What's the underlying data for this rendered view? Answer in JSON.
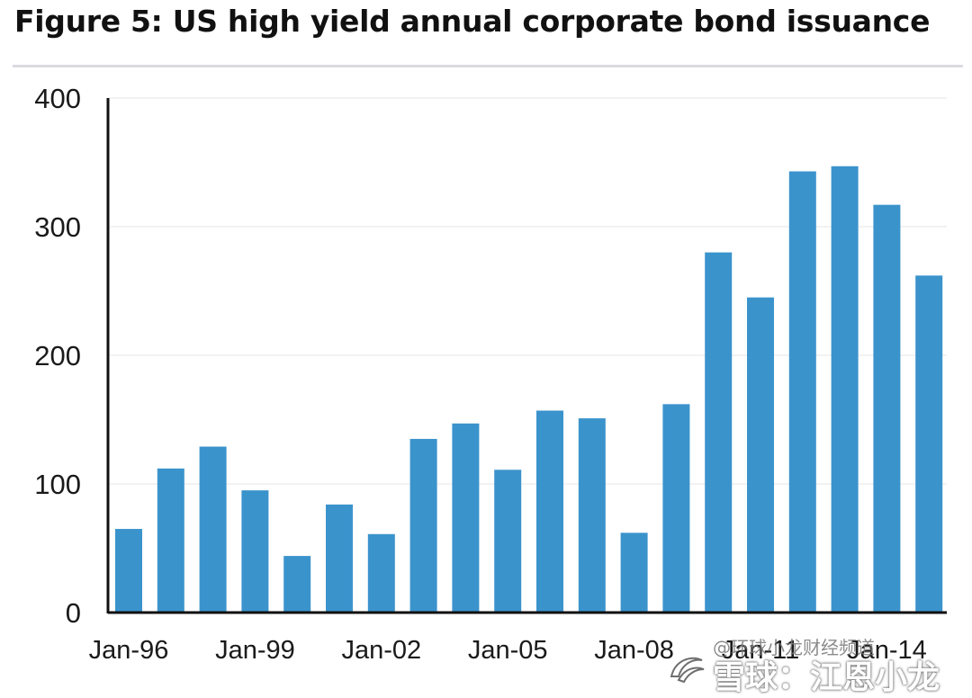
{
  "chart_data": {
    "type": "bar",
    "title": "Figure 5: US high yield annual corporate bond issuance",
    "xlabel": "",
    "ylabel": "",
    "ylim": [
      0,
      400
    ],
    "yticks": [
      0,
      100,
      200,
      300,
      400
    ],
    "grid": true,
    "bar_color": "#3b93cc",
    "categories": [
      "1996",
      "1997",
      "1998",
      "1999",
      "2000",
      "2001",
      "2002",
      "2003",
      "2004",
      "2005",
      "2006",
      "2007",
      "2008",
      "2009",
      "2010",
      "2011",
      "2012",
      "2013",
      "2014",
      "2015"
    ],
    "values": [
      65,
      112,
      129,
      95,
      44,
      84,
      61,
      135,
      147,
      111,
      157,
      151,
      62,
      162,
      280,
      245,
      343,
      347,
      317,
      262
    ],
    "xtick_labels": [
      {
        "index": 0,
        "label": "Jan-96"
      },
      {
        "index": 3,
        "label": "Jan-99"
      },
      {
        "index": 6,
        "label": "Jan-02"
      },
      {
        "index": 9,
        "label": "Jan-05"
      },
      {
        "index": 12,
        "label": "Jan-08"
      },
      {
        "index": 15,
        "label": "Jan-11"
      },
      {
        "index": 18,
        "label": "Jan-14"
      }
    ]
  },
  "watermark": {
    "line1": "@环球小龙财经频道",
    "line2": "雪球：江恩小龙"
  }
}
